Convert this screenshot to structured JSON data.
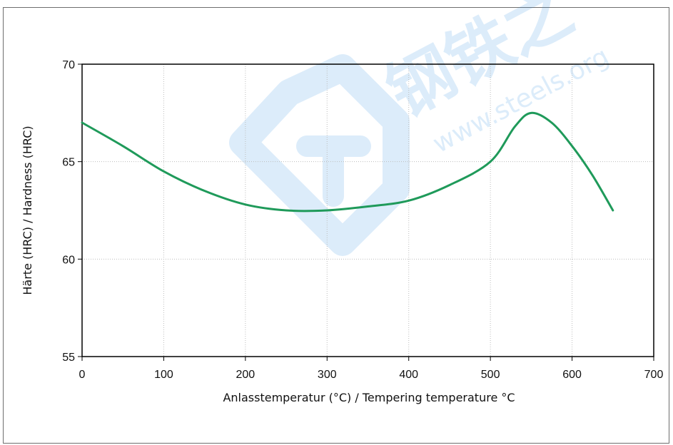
{
  "chart_data": {
    "type": "line",
    "title": "",
    "xlabel": "Anlasstemperatur (°C) / Tempering temperature °C",
    "ylabel": "Härte (HRC) / Hardness (HRC)",
    "xlim": [
      0,
      700
    ],
    "ylim": [
      55,
      70
    ],
    "x_ticks": [
      0,
      100,
      200,
      300,
      400,
      500,
      600,
      700
    ],
    "y_ticks": [
      55,
      60,
      65,
      70
    ],
    "grid": true,
    "legend": "none",
    "series": [
      {
        "color": "#1f9a5a",
        "x": [
          0,
          50,
          100,
          150,
          200,
          250,
          300,
          350,
          400,
          450,
          500,
          530,
          550,
          575,
          600,
          625,
          650
        ],
        "y": [
          67.0,
          65.8,
          64.5,
          63.5,
          62.8,
          62.5,
          62.5,
          62.7,
          63.0,
          63.8,
          65.0,
          66.8,
          67.5,
          67.0,
          65.8,
          64.3,
          62.5
        ]
      }
    ]
  },
  "watermark": {
    "characters": "钢铁之",
    "url_text": "www.steels.org",
    "color": "#2f8fe0"
  }
}
